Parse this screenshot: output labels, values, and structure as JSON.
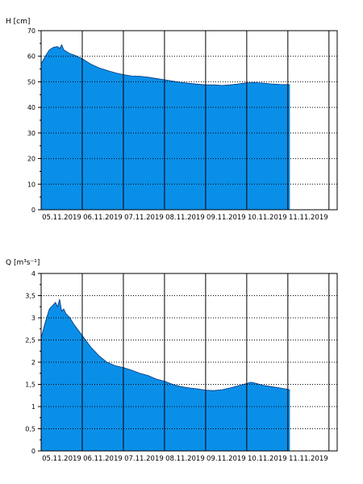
{
  "chart_data": [
    {
      "type": "area",
      "ylabel": "H [cm]",
      "ylim": [
        0,
        70
      ],
      "yticks": [
        0,
        10,
        20,
        30,
        40,
        50,
        60,
        70
      ],
      "xlim": [
        0,
        7.2
      ],
      "xtick_labels": [
        "05.11.2019",
        "06.11.2019",
        "07.11.2019",
        "08.11.2019",
        "09.11.2019",
        "10.11.2019",
        "11.11.2019"
      ],
      "grid": "dotted horizontal, solid vertical day lines",
      "color": "#0a8fe8",
      "series": [
        {
          "x": [
            0,
            0.1,
            0.2,
            0.3,
            0.4,
            0.45,
            0.5,
            0.55,
            0.6,
            0.65,
            0.7,
            0.8,
            1.0,
            1.2,
            1.4,
            1.6,
            1.8,
            2.0,
            2.2,
            2.4,
            2.6,
            2.8,
            3.0,
            3.2,
            3.4,
            3.6,
            3.8,
            4.0,
            4.2,
            4.4,
            4.6,
            4.8,
            5.0,
            5.2,
            5.4,
            5.6,
            5.8,
            6.0,
            6.05
          ],
          "y": [
            57,
            60,
            62.5,
            63.5,
            63.8,
            63,
            64.5,
            62.5,
            62,
            61.5,
            61,
            60.5,
            59,
            57,
            55.5,
            54.5,
            53.5,
            52.8,
            52.3,
            52.2,
            51.8,
            51.3,
            50.8,
            50.3,
            49.8,
            49.4,
            49.1,
            48.8,
            48.8,
            48.6,
            48.8,
            49.2,
            49.6,
            49.7,
            49.5,
            49.2,
            49,
            48.9,
            48.9
          ]
        }
      ]
    },
    {
      "type": "area",
      "ylabel": "Q [m³s⁻¹]",
      "ylim": [
        0,
        4
      ],
      "yticks": [
        0,
        0.5,
        1,
        1.5,
        2,
        2.5,
        3,
        3.5,
        4
      ],
      "ytick_labels": [
        "0",
        "0,5",
        "1",
        "1,5",
        "2",
        "2,5",
        "3",
        "3,5",
        "4"
      ],
      "xlim": [
        0,
        7.2
      ],
      "xtick_labels": [
        "05.11.2019",
        "06.11.2019",
        "07.11.2019",
        "08.11.2019",
        "09.11.2019",
        "10.11.2019",
        "11.11.2019"
      ],
      "grid": "dotted horizontal, solid vertical day lines",
      "color": "#0a8fe8",
      "series": [
        {
          "x": [
            0,
            0.1,
            0.2,
            0.3,
            0.35,
            0.4,
            0.45,
            0.5,
            0.55,
            0.6,
            0.7,
            0.8,
            1.0,
            1.2,
            1.4,
            1.6,
            1.8,
            2.0,
            2.2,
            2.4,
            2.6,
            2.8,
            3.0,
            3.2,
            3.4,
            3.6,
            3.8,
            4.0,
            4.2,
            4.4,
            4.6,
            4.8,
            5.0,
            5.1,
            5.2,
            5.4,
            5.6,
            5.8,
            6.0,
            6.05
          ],
          "y": [
            2.55,
            2.9,
            3.2,
            3.3,
            3.35,
            3.25,
            3.42,
            3.15,
            3.2,
            3.1,
            3.0,
            2.85,
            2.6,
            2.35,
            2.15,
            2.0,
            1.92,
            1.88,
            1.82,
            1.75,
            1.7,
            1.62,
            1.57,
            1.5,
            1.45,
            1.42,
            1.4,
            1.37,
            1.36,
            1.38,
            1.42,
            1.47,
            1.52,
            1.55,
            1.53,
            1.48,
            1.45,
            1.42,
            1.39,
            1.37
          ]
        }
      ]
    }
  ]
}
